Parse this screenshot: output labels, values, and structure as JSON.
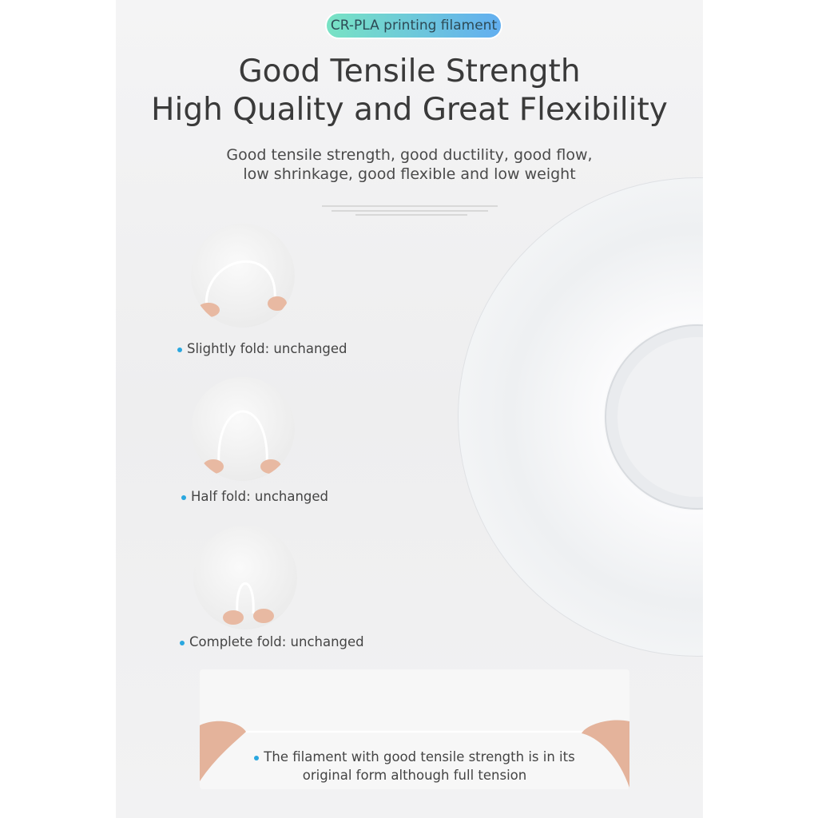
{
  "badge": "CR-PLA printing filament",
  "title": {
    "line1": "Good Tensile Strength",
    "line2": "High Quality and Great Flexibility"
  },
  "subtitle": {
    "line1": "Good tensile strength, good ductility, good flow,",
    "line2": "low shrinkage, good flexible and low weight"
  },
  "folds": [
    {
      "label": "Slightly fold: unchanged"
    },
    {
      "label": "Half fold: unchanged"
    },
    {
      "label": "Complete fold: unchanged"
    }
  ],
  "tension": {
    "line1": "The filament with good tensile strength is in its",
    "line2": "original form although full tension"
  },
  "colors": {
    "bullet": "#2aa7df",
    "badge_start": "#78e3c4",
    "badge_end": "#62aef0"
  }
}
